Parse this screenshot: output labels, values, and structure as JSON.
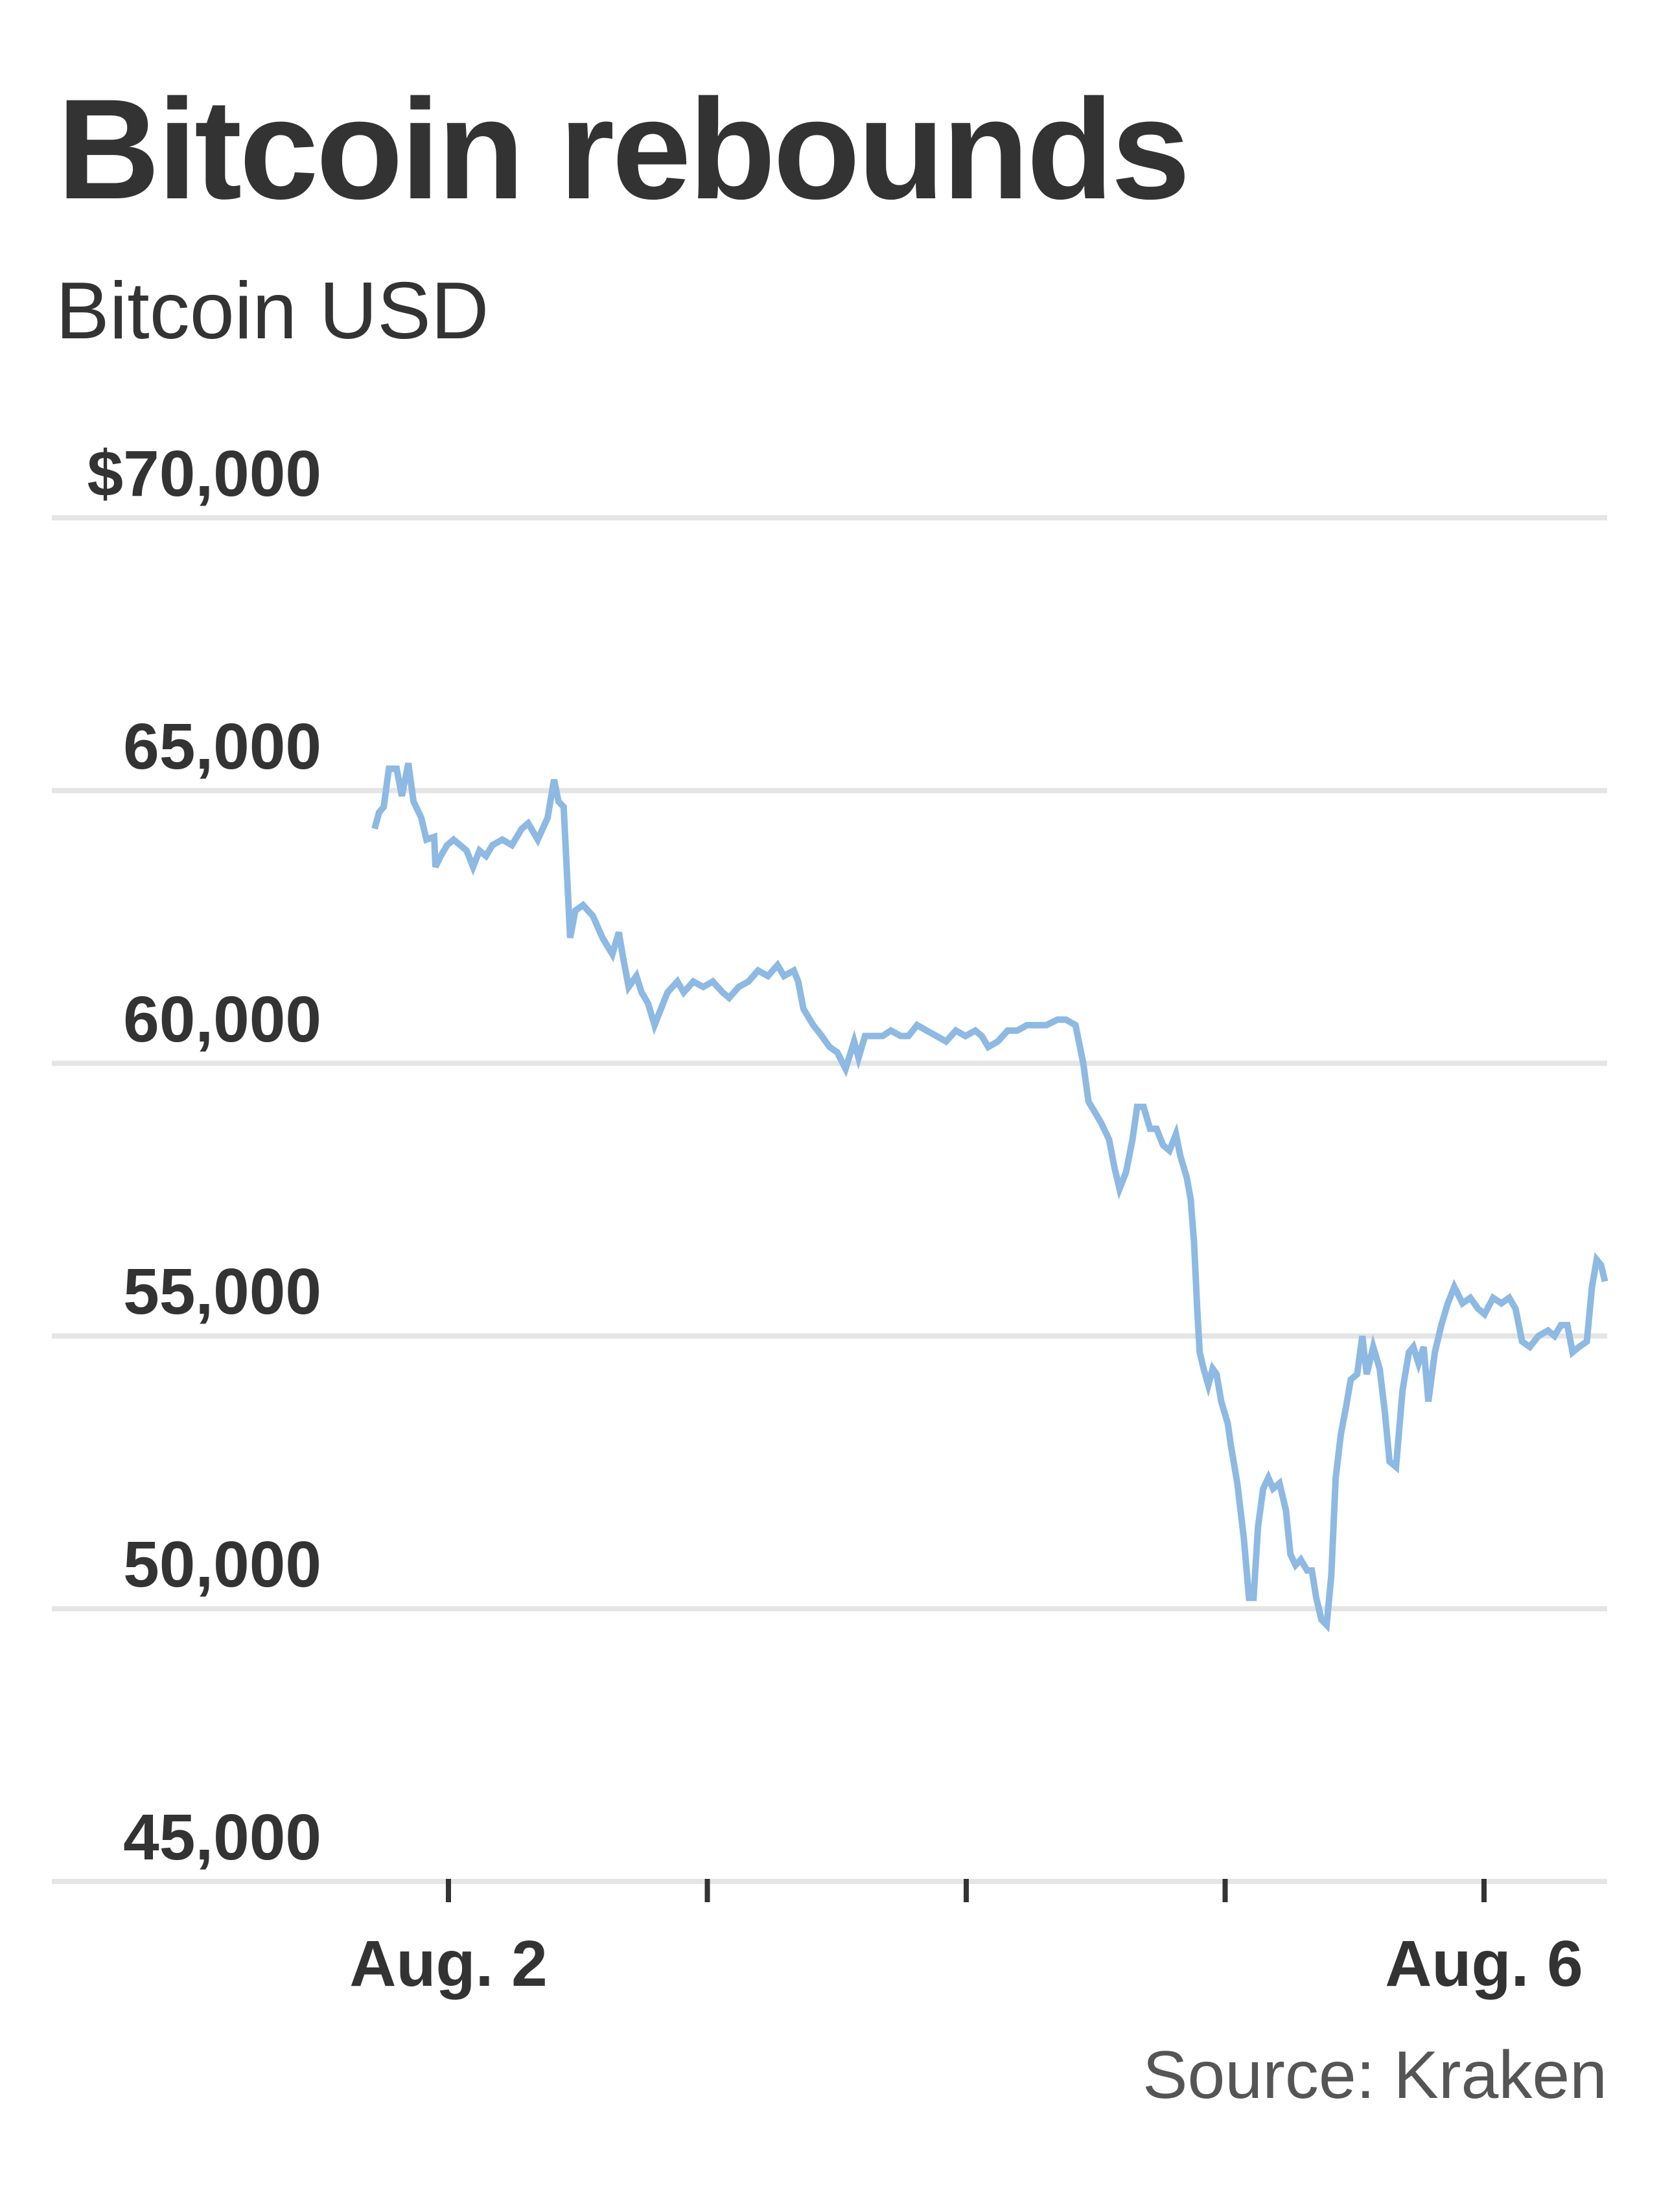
{
  "header": {
    "title": "Bitcoin rebounds",
    "subtitle": "Bitcoin USD"
  },
  "footer": {
    "source": "Source: Kraken"
  },
  "colors": {
    "line": "#8DB9E3",
    "grid": "#E5E5E5",
    "text": "#333333",
    "source_text": "#555555",
    "tick": "#333333"
  },
  "chart_data": {
    "type": "line",
    "title": "Bitcoin rebounds",
    "subtitle": "Bitcoin USD",
    "xlabel": "",
    "ylabel": "",
    "source": "Source: Kraken",
    "ylim": [
      45000,
      70000
    ],
    "y_ticks": [
      {
        "value": 70000,
        "label": "$70,000"
      },
      {
        "value": 65000,
        "label": "65,000"
      },
      {
        "value": 60000,
        "label": "60,000"
      },
      {
        "value": 55000,
        "label": "55,000"
      },
      {
        "value": 50000,
        "label": "50,000"
      },
      {
        "value": 45000,
        "label": "45,000"
      }
    ],
    "x_unit": "days since Aug. 2 00:00",
    "xlim": [
      -0.285,
      4.47
    ],
    "x_ticks": [
      {
        "value": 0,
        "label": "Aug. 2"
      },
      {
        "value": 1,
        "label": ""
      },
      {
        "value": 2,
        "label": ""
      },
      {
        "value": 3,
        "label": ""
      },
      {
        "value": 4,
        "label": "Aug. 6"
      }
    ],
    "grid": true,
    "legend": null,
    "series": [
      {
        "name": "Bitcoin USD",
        "points": [
          [
            -0.285,
            64300
          ],
          [
            -0.268,
            64600
          ],
          [
            -0.25,
            64700
          ],
          [
            -0.23,
            65400
          ],
          [
            -0.2,
            65400
          ],
          [
            -0.18,
            64900
          ],
          [
            -0.155,
            65500
          ],
          [
            -0.135,
            64800
          ],
          [
            -0.105,
            64500
          ],
          [
            -0.085,
            64100
          ],
          [
            -0.055,
            64150
          ],
          [
            -0.05,
            63600
          ],
          [
            -0.03,
            63800
          ],
          [
            -0.005,
            64000
          ],
          [
            0.02,
            64100
          ],
          [
            0.045,
            64000
          ],
          [
            0.07,
            63900
          ],
          [
            0.095,
            63600
          ],
          [
            0.12,
            63900
          ],
          [
            0.145,
            63800
          ],
          [
            0.17,
            64000
          ],
          [
            0.208,
            64100
          ],
          [
            0.245,
            64000
          ],
          [
            0.283,
            64300
          ],
          [
            0.308,
            64400
          ],
          [
            0.345,
            64100
          ],
          [
            0.383,
            64500
          ],
          [
            0.408,
            65200
          ],
          [
            0.425,
            64800
          ],
          [
            0.445,
            64700
          ],
          [
            0.47,
            62300
          ],
          [
            0.49,
            62800
          ],
          [
            0.52,
            62900
          ],
          [
            0.558,
            62700
          ],
          [
            0.595,
            62300
          ],
          [
            0.633,
            62000
          ],
          [
            0.658,
            62400
          ],
          [
            0.676,
            61900
          ],
          [
            0.696,
            61400
          ],
          [
            0.726,
            61600
          ],
          [
            0.746,
            61300
          ],
          [
            0.771,
            61100
          ],
          [
            0.796,
            60700
          ],
          [
            0.821,
            61000
          ],
          [
            0.846,
            61300
          ],
          [
            0.884,
            61500
          ],
          [
            0.909,
            61300
          ],
          [
            0.946,
            61500
          ],
          [
            0.984,
            61400
          ],
          [
            1.021,
            61500
          ],
          [
            1.059,
            61300
          ],
          [
            1.084,
            61200
          ],
          [
            1.121,
            61400
          ],
          [
            1.159,
            61500
          ],
          [
            1.196,
            61700
          ],
          [
            1.234,
            61600
          ],
          [
            1.271,
            61800
          ],
          [
            1.296,
            61600
          ],
          [
            1.334,
            61700
          ],
          [
            1.351,
            61500
          ],
          [
            1.371,
            61000
          ],
          [
            1.409,
            60700
          ],
          [
            1.442,
            60500
          ],
          [
            1.472,
            60300
          ],
          [
            1.502,
            60200
          ],
          [
            1.534,
            59900
          ],
          [
            1.567,
            60400
          ],
          [
            1.584,
            60100
          ],
          [
            1.609,
            60500
          ],
          [
            1.647,
            60500
          ],
          [
            1.677,
            60500
          ],
          [
            1.709,
            60600
          ],
          [
            1.747,
            60500
          ],
          [
            1.777,
            60500
          ],
          [
            1.81,
            60700
          ],
          [
            1.847,
            60600
          ],
          [
            1.885,
            60500
          ],
          [
            1.922,
            60400
          ],
          [
            1.96,
            60600
          ],
          [
            1.997,
            60500
          ],
          [
            2.035,
            60600
          ],
          [
            2.06,
            60500
          ],
          [
            2.085,
            60300
          ],
          [
            2.122,
            60400
          ],
          [
            2.16,
            60600
          ],
          [
            2.197,
            60600
          ],
          [
            2.235,
            60700
          ],
          [
            2.272,
            60700
          ],
          [
            2.31,
            60700
          ],
          [
            2.352,
            60800
          ],
          [
            2.385,
            60800
          ],
          [
            2.422,
            60700
          ],
          [
            2.452,
            60000
          ],
          [
            2.472,
            59300
          ],
          [
            2.497,
            59100
          ],
          [
            2.522,
            58900
          ],
          [
            2.552,
            58600
          ],
          [
            2.572,
            58100
          ],
          [
            2.592,
            57700
          ],
          [
            2.617,
            58000
          ],
          [
            2.642,
            58600
          ],
          [
            2.66,
            59200
          ],
          [
            2.685,
            59200
          ],
          [
            2.71,
            58800
          ],
          [
            2.735,
            58800
          ],
          [
            2.76,
            58500
          ],
          [
            2.785,
            58400
          ],
          [
            2.81,
            58700
          ],
          [
            2.827,
            58300
          ],
          [
            2.852,
            57900
          ],
          [
            2.867,
            57500
          ],
          [
            2.88,
            56700
          ],
          [
            2.892,
            55500
          ],
          [
            2.902,
            54700
          ],
          [
            2.917,
            54400
          ],
          [
            2.935,
            54100
          ],
          [
            2.952,
            54400
          ],
          [
            2.967,
            54300
          ],
          [
            2.985,
            53800
          ],
          [
            3.01,
            53400
          ],
          [
            3.022,
            53000
          ],
          [
            3.047,
            52300
          ],
          [
            3.072,
            51300
          ],
          [
            3.092,
            50200
          ],
          [
            3.11,
            50200
          ],
          [
            3.127,
            51500
          ],
          [
            3.147,
            52200
          ],
          [
            3.167,
            52400
          ],
          [
            3.185,
            52200
          ],
          [
            3.21,
            52300
          ],
          [
            3.235,
            51800
          ],
          [
            3.252,
            51000
          ],
          [
            3.272,
            50800
          ],
          [
            3.292,
            50900
          ],
          [
            3.317,
            50700
          ],
          [
            3.335,
            50700
          ],
          [
            3.352,
            50200
          ],
          [
            3.372,
            49800
          ],
          [
            3.392,
            49700
          ],
          [
            3.41,
            50600
          ],
          [
            3.427,
            52400
          ],
          [
            3.447,
            53200
          ],
          [
            3.467,
            53700
          ],
          [
            3.485,
            54200
          ],
          [
            3.51,
            54300
          ],
          [
            3.53,
            55000
          ],
          [
            3.547,
            54300
          ],
          [
            3.572,
            54800
          ],
          [
            3.597,
            54400
          ],
          [
            3.617,
            53600
          ],
          [
            3.635,
            52700
          ],
          [
            3.66,
            52600
          ],
          [
            3.685,
            54000
          ],
          [
            3.71,
            54700
          ],
          [
            3.727,
            54800
          ],
          [
            3.747,
            54500
          ],
          [
            3.767,
            54800
          ],
          [
            3.785,
            53800
          ],
          [
            3.81,
            54700
          ],
          [
            3.835,
            55200
          ],
          [
            3.86,
            55600
          ],
          [
            3.885,
            55900
          ],
          [
            3.917,
            55600
          ],
          [
            3.947,
            55700
          ],
          [
            3.977,
            55500
          ],
          [
            4.002,
            55400
          ],
          [
            4.035,
            55700
          ],
          [
            4.067,
            55600
          ],
          [
            4.097,
            55700
          ],
          [
            4.122,
            55500
          ],
          [
            4.147,
            54900
          ],
          [
            4.177,
            54800
          ],
          [
            4.21,
            55000
          ],
          [
            4.247,
            55100
          ],
          [
            4.272,
            55000
          ],
          [
            4.297,
            55200
          ],
          [
            4.322,
            55200
          ],
          [
            4.342,
            54700
          ],
          [
            4.367,
            54800
          ],
          [
            4.397,
            54900
          ],
          [
            4.417,
            55900
          ],
          [
            4.435,
            56400
          ],
          [
            4.452,
            56300
          ],
          [
            4.467,
            56000
          ]
        ]
      }
    ]
  }
}
